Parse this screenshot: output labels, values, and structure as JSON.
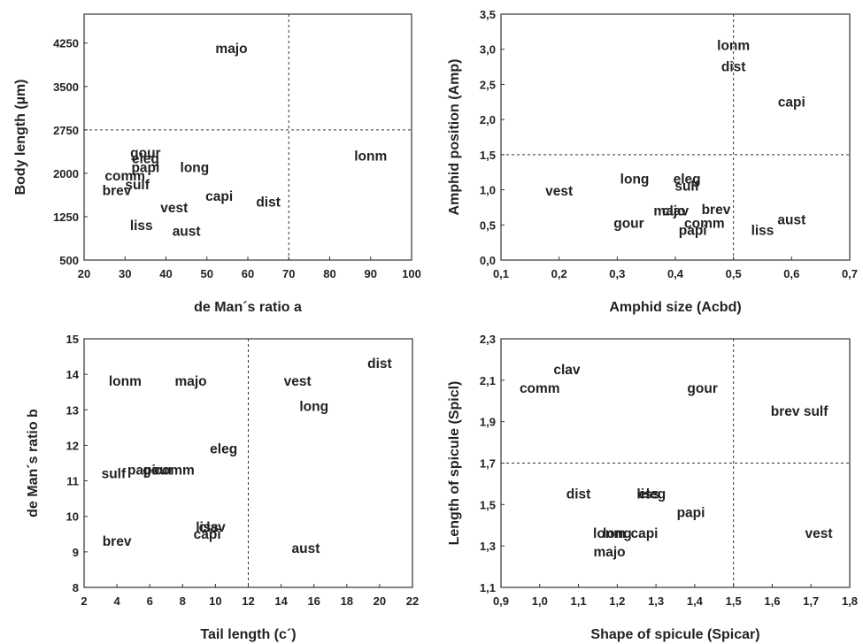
{
  "chart_data": [
    {
      "type": "scatter",
      "xlabel": "de Man´s ratio a",
      "ylabel": "Body length (µm)",
      "xlim": [
        20,
        100
      ],
      "ylim": [
        500,
        4750
      ],
      "xticks": [
        20,
        30,
        40,
        50,
        60,
        70,
        80,
        90,
        100
      ],
      "yticks": [
        500,
        1250,
        2000,
        2750,
        3500,
        4250
      ],
      "reference_lines": {
        "x": 70,
        "y": 2750
      },
      "points": [
        {
          "label": "majo",
          "x": 56,
          "y": 4150
        },
        {
          "label": "lonm",
          "x": 90,
          "y": 2300
        },
        {
          "label": "gour",
          "x": 35,
          "y": 2350
        },
        {
          "label": "eleg",
          "x": 35,
          "y": 2250
        },
        {
          "label": "papi",
          "x": 35,
          "y": 2100
        },
        {
          "label": "long",
          "x": 47,
          "y": 2100
        },
        {
          "label": "comm",
          "x": 30,
          "y": 1950
        },
        {
          "label": "sulf",
          "x": 33,
          "y": 1800
        },
        {
          "label": "brev",
          "x": 28,
          "y": 1700
        },
        {
          "label": "capi",
          "x": 53,
          "y": 1600
        },
        {
          "label": "dist",
          "x": 65,
          "y": 1500
        },
        {
          "label": "vest",
          "x": 42,
          "y": 1400
        },
        {
          "label": "liss",
          "x": 34,
          "y": 1100
        },
        {
          "label": "aust",
          "x": 45,
          "y": 1000
        }
      ]
    },
    {
      "type": "scatter",
      "xlabel": "Amphid size (Acbd)",
      "ylabel": "Amphid position (Amp)",
      "xlim": [
        0.1,
        0.7
      ],
      "ylim": [
        0,
        3.5
      ],
      "xticks": [
        "0,1",
        "0,2",
        "0,3",
        "0,4",
        "0,5",
        "0,6",
        "0,7"
      ],
      "yticks": [
        "0,0",
        "0,5",
        "1,0",
        "1,5",
        "2,0",
        "2,5",
        "3,0",
        "3,5"
      ],
      "reference_lines": {
        "x": 0.5,
        "y": 1.5
      },
      "points": [
        {
          "label": "lonm",
          "x": 0.5,
          "y": 3.05
        },
        {
          "label": "dist",
          "x": 0.5,
          "y": 2.75
        },
        {
          "label": "capi",
          "x": 0.6,
          "y": 2.25
        },
        {
          "label": "long",
          "x": 0.33,
          "y": 1.15
        },
        {
          "label": "eleg",
          "x": 0.42,
          "y": 1.15
        },
        {
          "label": "sulf",
          "x": 0.42,
          "y": 1.05
        },
        {
          "label": "vest",
          "x": 0.2,
          "y": 0.98
        },
        {
          "label": "majo",
          "x": 0.39,
          "y": 0.7
        },
        {
          "label": "clav",
          "x": 0.4,
          "y": 0.7
        },
        {
          "label": "brev",
          "x": 0.47,
          "y": 0.72
        },
        {
          "label": "comm",
          "x": 0.45,
          "y": 0.52
        },
        {
          "label": "gour",
          "x": 0.32,
          "y": 0.52
        },
        {
          "label": "papi",
          "x": 0.43,
          "y": 0.42
        },
        {
          "label": "aust",
          "x": 0.6,
          "y": 0.57
        },
        {
          "label": "liss",
          "x": 0.55,
          "y": 0.42
        }
      ]
    },
    {
      "type": "scatter",
      "xlabel": "Tail length (c´)",
      "ylabel": "de Man´s ratio b",
      "xlim": [
        2,
        22
      ],
      "ylim": [
        8,
        15
      ],
      "xticks": [
        2,
        4,
        6,
        8,
        10,
        12,
        14,
        16,
        18,
        20,
        22
      ],
      "yticks": [
        8,
        9,
        10,
        11,
        12,
        13,
        14,
        15
      ],
      "reference_lines": {
        "x": 12
      },
      "points": [
        {
          "label": "dist",
          "x": 20,
          "y": 14.3
        },
        {
          "label": "lonm",
          "x": 4.5,
          "y": 13.8
        },
        {
          "label": "majo",
          "x": 8.5,
          "y": 13.8
        },
        {
          "label": "vest",
          "x": 15,
          "y": 13.8
        },
        {
          "label": "long",
          "x": 16,
          "y": 13.1
        },
        {
          "label": "eleg",
          "x": 10.5,
          "y": 11.9
        },
        {
          "label": "papi",
          "x": 5.5,
          "y": 11.3
        },
        {
          "label": "gour",
          "x": 6.5,
          "y": 11.3
        },
        {
          "label": "comm",
          "x": 7.5,
          "y": 11.3
        },
        {
          "label": "sulf",
          "x": 3.8,
          "y": 11.2
        },
        {
          "label": "liss",
          "x": 9.5,
          "y": 9.7
        },
        {
          "label": "clav",
          "x": 9.8,
          "y": 9.7
        },
        {
          "label": "capi",
          "x": 9.5,
          "y": 9.5
        },
        {
          "label": "brev",
          "x": 4,
          "y": 9.3
        },
        {
          "label": "aust",
          "x": 15.5,
          "y": 9.1
        }
      ]
    },
    {
      "type": "scatter",
      "xlabel": "Shape of spicule (Spicar)",
      "ylabel": "Length of spicule (Spicl)",
      "xlim": [
        0.9,
        1.8
      ],
      "ylim": [
        1.1,
        2.3
      ],
      "xticks": [
        "0,9",
        "1,0",
        "1,1",
        "1,2",
        "1,3",
        "1,4",
        "1,5",
        "1,6",
        "1,7",
        "1,8"
      ],
      "yticks": [
        "1,1",
        "1,3",
        "1,5",
        "1,7",
        "1,9",
        "2,1",
        "2,3"
      ],
      "reference_lines": {
        "x": 1.5,
        "y": 1.7
      },
      "points": [
        {
          "label": "clav",
          "x": 1.07,
          "y": 2.15
        },
        {
          "label": "comm",
          "x": 1.0,
          "y": 2.06
        },
        {
          "label": "gour",
          "x": 1.42,
          "y": 2.06
        },
        {
          "label": "brev sulf",
          "x": 1.67,
          "y": 1.95
        },
        {
          "label": "dist",
          "x": 1.1,
          "y": 1.55
        },
        {
          "label": "liss",
          "x": 1.28,
          "y": 1.55
        },
        {
          "label": "eleg",
          "x": 1.29,
          "y": 1.55
        },
        {
          "label": "papi",
          "x": 1.39,
          "y": 1.46
        },
        {
          "label": "lonm",
          "x": 1.18,
          "y": 1.36
        },
        {
          "label": "long",
          "x": 1.2,
          "y": 1.36
        },
        {
          "label": "capi",
          "x": 1.27,
          "y": 1.36
        },
        {
          "label": "vest",
          "x": 1.72,
          "y": 1.36
        },
        {
          "label": "majo",
          "x": 1.18,
          "y": 1.27
        }
      ]
    }
  ]
}
